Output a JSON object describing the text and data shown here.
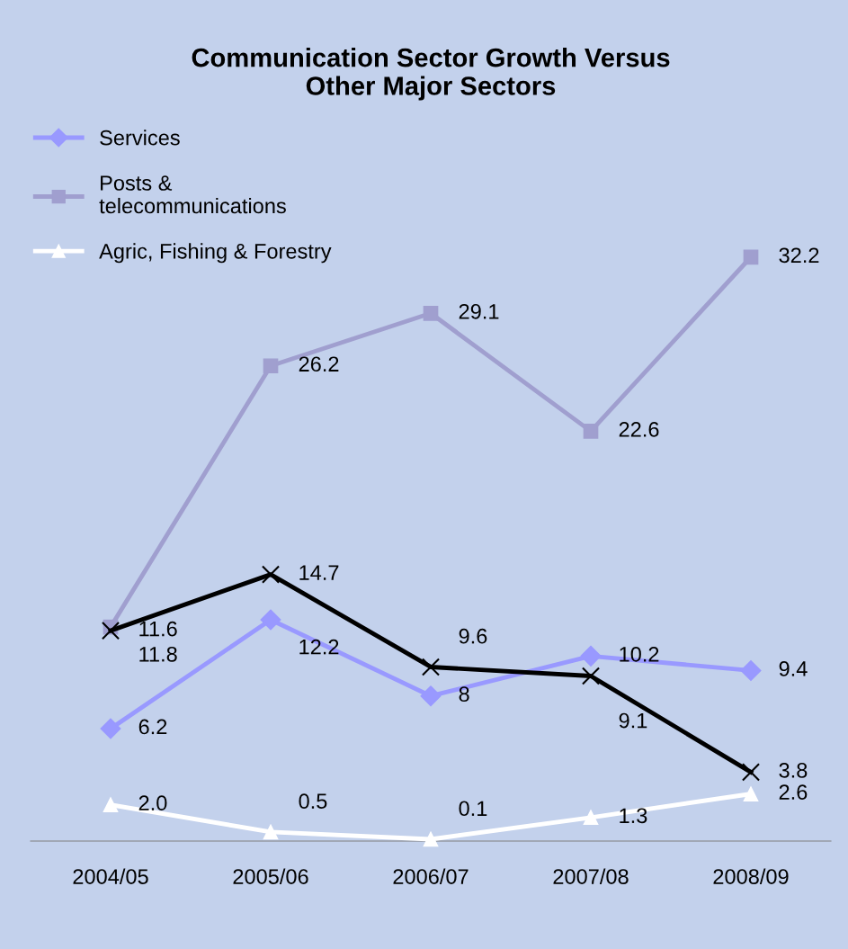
{
  "chart_data": {
    "type": "line",
    "title": "Communication Sector Growth Versus\nOther Major Sectors",
    "categories": [
      "2004/05",
      "2005/06",
      "2006/07",
      "2007/08",
      "2008/09"
    ],
    "series": [
      {
        "name": "Services",
        "color": "#9999ff",
        "marker": "diamond",
        "values": [
          6.2,
          12.2,
          8,
          10.2,
          9.4
        ],
        "value_labels": [
          "6.2",
          "12.2",
          "8",
          "10.2",
          "9.4"
        ]
      },
      {
        "name": "Posts &\ntelecommunications",
        "color": "#a09fcf",
        "marker": "square",
        "values": [
          11.8,
          26.2,
          29.1,
          22.6,
          32.2
        ]
      },
      {
        "name": "Agric, Fishing & Forestry",
        "color": "#ffffff",
        "marker": "triangle",
        "values": [
          2.0,
          0.5,
          0.1,
          1.3,
          2.6
        ],
        "value_labels": [
          "2.0",
          "0.5",
          "0.1",
          "1.3",
          "2.6"
        ]
      },
      {
        "color": "#000000",
        "marker": "cross",
        "values": [
          11.6,
          14.7,
          9.6,
          9.1,
          3.8
        ]
      }
    ],
    "data_labels": true,
    "legend": "top left",
    "grid": false
  }
}
